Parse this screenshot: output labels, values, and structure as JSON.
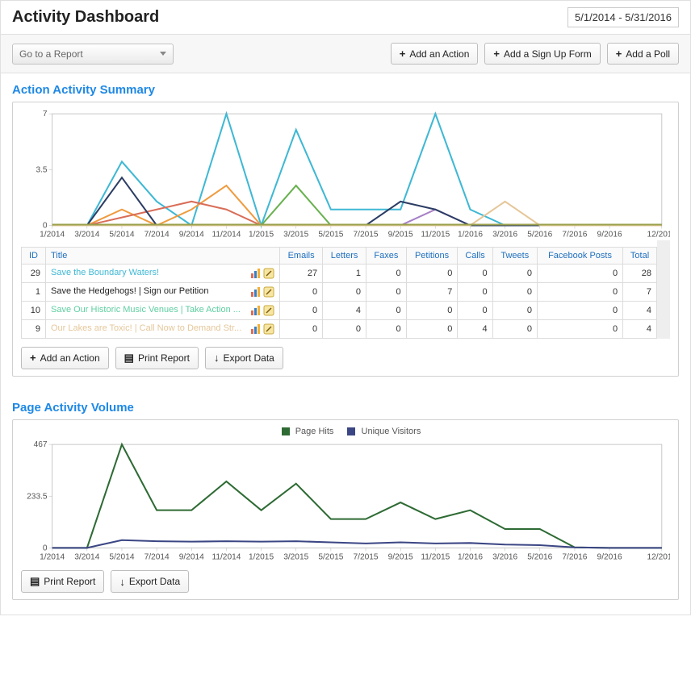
{
  "header": {
    "title": "Activity Dashboard",
    "date_range": "5/1/2014 - 5/31/2016"
  },
  "toolbar": {
    "report_select_placeholder": "Go to a Report",
    "buttons": {
      "add_action": "Add an Action",
      "add_signup": "Add a Sign Up Form",
      "add_poll": "Add a Poll"
    }
  },
  "section_summary": {
    "title": "Action Activity Summary",
    "chart": {
      "type": "line",
      "ylim": [
        0,
        7
      ],
      "ytick_step": 3.5,
      "background_color": "#ffffff",
      "grid_color": "#bbbbbb",
      "x_categories": [
        "1/2014",
        "3/2014",
        "5/2014",
        "7/2014",
        "9/2014",
        "11/2014",
        "1/2015",
        "3/2015",
        "5/2015",
        "7/2015",
        "9/2015",
        "11/2015",
        "1/2016",
        "3/2016",
        "5/2016",
        "7/2016",
        "9/2016",
        "12/2016"
      ],
      "x_positions": [
        0,
        1,
        2,
        3,
        4,
        5,
        6,
        7,
        8,
        9,
        10,
        11,
        12,
        13,
        14,
        15,
        16,
        17.5
      ],
      "series": [
        {
          "name": "teal",
          "color": "#3fb8d4",
          "stroke_width": 2.5,
          "values": [
            0,
            0,
            4,
            1.5,
            0,
            7,
            0,
            6,
            1,
            1,
            1,
            7,
            1,
            0,
            0,
            0,
            0,
            0
          ]
        },
        {
          "name": "green",
          "color": "#68b14f",
          "stroke_width": 2,
          "values": [
            0,
            0,
            0,
            0,
            0,
            0,
            0,
            2.5,
            0,
            0,
            0,
            0,
            0,
            0,
            0,
            0,
            0,
            0
          ]
        },
        {
          "name": "orange",
          "color": "#ef9b3e",
          "stroke_width": 2,
          "values": [
            0,
            0,
            1,
            0,
            1,
            2.5,
            0,
            0,
            0,
            0,
            0,
            0,
            0,
            0,
            0,
            0,
            0,
            0
          ]
        },
        {
          "name": "red",
          "color": "#d96d58",
          "stroke_width": 2,
          "values": [
            0,
            0,
            0.5,
            1,
            1.5,
            1,
            0,
            0,
            0,
            0,
            0,
            0,
            0,
            0,
            0,
            0,
            0,
            0
          ]
        },
        {
          "name": "purple",
          "color": "#a67fc6",
          "stroke_width": 2,
          "values": [
            0,
            0,
            0,
            0,
            0,
            0,
            0,
            0,
            0,
            0,
            0,
            1,
            0,
            0,
            0,
            0,
            0,
            0
          ]
        },
        {
          "name": "navy",
          "color": "#2c3d64",
          "stroke_width": 2,
          "values": [
            0,
            0,
            3,
            0,
            0,
            0,
            0,
            0,
            0,
            0,
            1.5,
            1,
            0,
            0,
            0,
            0,
            0,
            0
          ]
        },
        {
          "name": "tan",
          "color": "#e5c79a",
          "stroke_width": 2,
          "values": [
            0,
            0,
            0,
            0,
            0,
            0,
            0,
            0,
            0,
            0,
            0,
            0,
            0,
            1.5,
            0,
            0,
            0,
            0
          ]
        },
        {
          "name": "olive",
          "color": "#9aa04c",
          "stroke_width": 2,
          "values": [
            0.05,
            0.05,
            0.05,
            0.05,
            0.05,
            0.05,
            0.05,
            0.05,
            0.05,
            0.05,
            0.05,
            0.05,
            0.05,
            0.05,
            0.05,
            0.05,
            0.05,
            0.05
          ]
        }
      ]
    },
    "table": {
      "columns": [
        "ID",
        "Title",
        "Emails",
        "Letters",
        "Faxes",
        "Petitions",
        "Calls",
        "Tweets",
        "Facebook Posts",
        "Total"
      ],
      "rows": [
        {
          "id": 29,
          "title": "Save the Boundary Waters!",
          "link_class": "link1",
          "emails": 27,
          "letters": 1,
          "faxes": 0,
          "petitions": 0,
          "calls": 0,
          "tweets": 0,
          "facebook": 0,
          "total": 28
        },
        {
          "id": 1,
          "title": "Save the Hedgehogs! | Sign our Petition",
          "link_class": "link2",
          "emails": 0,
          "letters": 0,
          "faxes": 0,
          "petitions": 7,
          "calls": 0,
          "tweets": 0,
          "facebook": 0,
          "total": 7
        },
        {
          "id": 10,
          "title": "Save Our Historic Music Venues | Take Action ...",
          "link_class": "link3",
          "emails": 0,
          "letters": 4,
          "faxes": 0,
          "petitions": 0,
          "calls": 0,
          "tweets": 0,
          "facebook": 0,
          "total": 4
        },
        {
          "id": 9,
          "title": "Our Lakes are Toxic! | Call Now to Demand Str...",
          "link_class": "link4",
          "emails": 0,
          "letters": 0,
          "faxes": 0,
          "petitions": 0,
          "calls": 4,
          "tweets": 0,
          "facebook": 0,
          "total": 4
        }
      ]
    },
    "panel_buttons": {
      "add_action": "Add an Action",
      "print": "Print Report",
      "export": "Export Data"
    }
  },
  "section_volume": {
    "title": "Page Activity Volume",
    "legend": {
      "a_label": "Page Hits",
      "a_color": "#2e6b34",
      "b_label": "Unique Visitors",
      "b_color": "#3b4684"
    },
    "chart": {
      "type": "line",
      "ylim": [
        0,
        467
      ],
      "ytick_values": [
        0,
        233.5,
        467
      ],
      "background_color": "#ffffff",
      "grid_color": "#bbbbbb",
      "x_categories": [
        "1/2014",
        "3/2014",
        "5/2014",
        "7/2014",
        "9/2014",
        "11/2014",
        "1/2015",
        "3/2015",
        "5/2015",
        "7/2015",
        "9/2015",
        "11/2015",
        "1/2016",
        "3/2016",
        "5/2016",
        "7/2016",
        "9/2016",
        "12/2016"
      ],
      "x_positions": [
        0,
        1,
        2,
        3,
        4,
        5,
        6,
        7,
        8,
        9,
        10,
        11,
        12,
        13,
        14,
        15,
        16,
        17.5
      ],
      "series": [
        {
          "name": "page_hits",
          "color": "#2e6b34",
          "stroke_width": 2,
          "values": [
            0,
            0,
            467,
            170,
            170,
            300,
            170,
            290,
            130,
            130,
            205,
            130,
            170,
            85,
            85,
            2,
            0,
            0
          ]
        },
        {
          "name": "unique",
          "color": "#3b4684",
          "stroke_width": 2,
          "values": [
            0,
            0,
            35,
            30,
            28,
            30,
            28,
            30,
            25,
            20,
            25,
            20,
            22,
            15,
            12,
            2,
            0,
            0
          ]
        }
      ]
    },
    "panel_buttons": {
      "print": "Print Report",
      "export": "Export Data"
    }
  },
  "icons": {
    "plus": "+",
    "down": "▾",
    "print": "▤",
    "export": "↓",
    "chart": "📊",
    "edit": "✎"
  }
}
